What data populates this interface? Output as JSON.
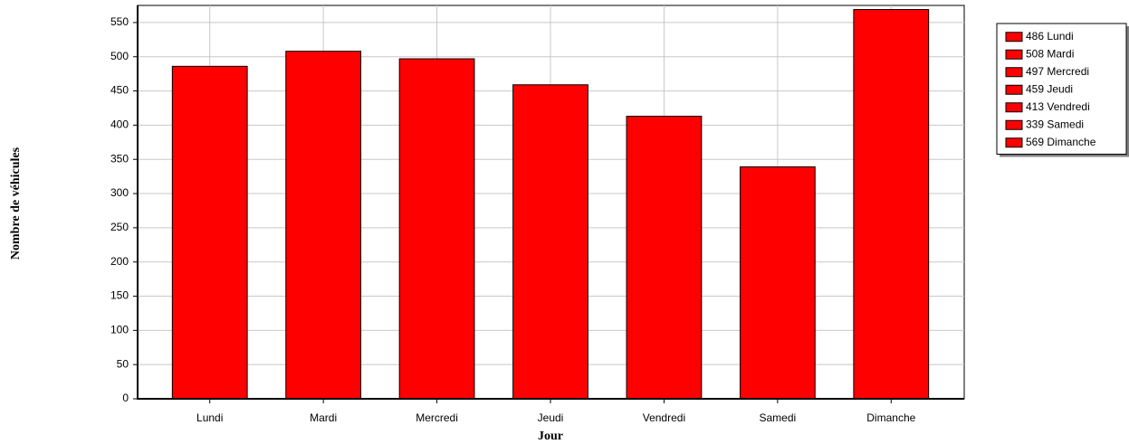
{
  "chart_data": {
    "type": "bar",
    "categories": [
      "Lundi",
      "Mardi",
      "Mercredi",
      "Jeudi",
      "Vendredi",
      "Samedi",
      "Dimanche"
    ],
    "values": [
      486,
      508,
      497,
      459,
      413,
      339,
      569
    ],
    "legend_labels": [
      "486 Lundi",
      "508 Mardi",
      "497 Mercredi",
      "459 Jeudi",
      "413 Vendredi",
      "339 Samedi",
      "569 Dimanche"
    ],
    "color": "#ff0000",
    "x_label": "Jour",
    "y_label": "Nombre de véhicules",
    "ylim": [
      0,
      575
    ],
    "yticks": [
      0,
      50,
      100,
      150,
      200,
      250,
      300,
      350,
      400,
      450,
      500,
      550
    ],
    "grid": true,
    "legend_position": "upper right"
  }
}
